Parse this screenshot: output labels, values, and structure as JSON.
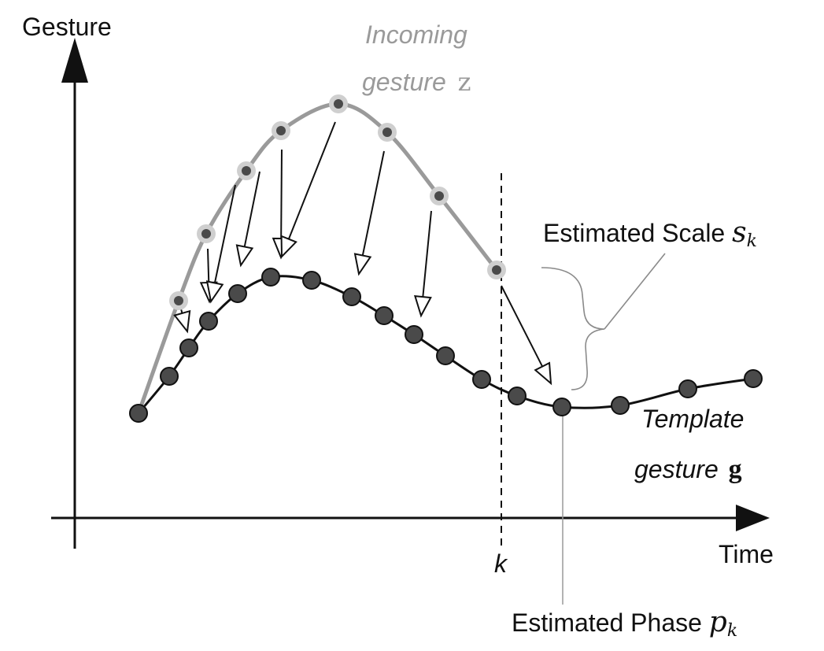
{
  "axes": {
    "y_label": "Gesture",
    "x_label": "Time",
    "k_label": "k"
  },
  "incoming_curve": {
    "label_line1": "Incoming",
    "label_line2": "gesture",
    "symbol": "z",
    "color": "#9a9a9a"
  },
  "template_curve": {
    "label_line1": "Template",
    "label_line2": "gesture",
    "symbol": "g",
    "color": "#111111",
    "dot_color": "#4a4a4a"
  },
  "annotations": {
    "scale_text": "Estimated Scale",
    "scale_symbol": "s",
    "scale_subscript": "k",
    "phase_text": "Estimated Phase",
    "phase_symbol": "p",
    "phase_subscript": "k"
  }
}
